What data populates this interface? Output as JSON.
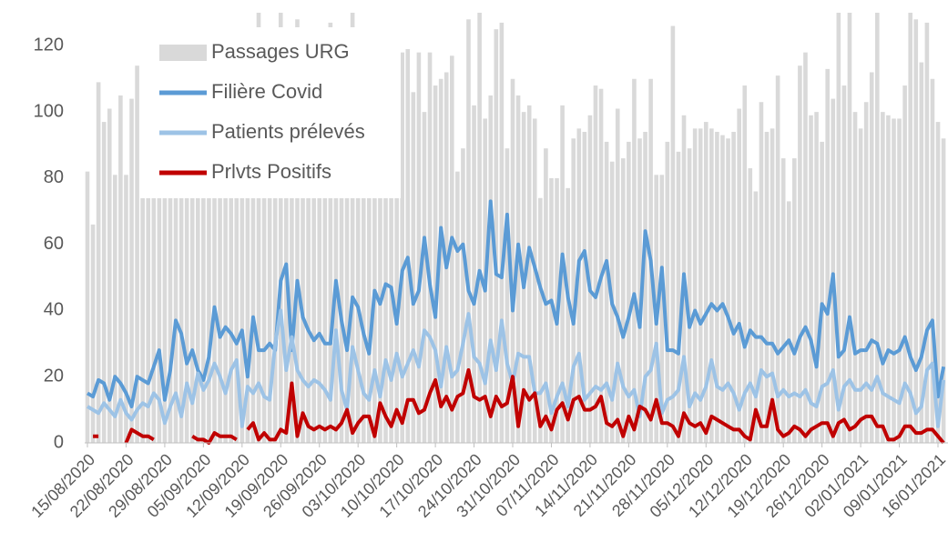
{
  "chart_data": {
    "type": "combo",
    "categories": [
      "15/08/2020",
      null,
      null,
      null,
      null,
      null,
      null,
      "22/08/2020",
      null,
      null,
      null,
      null,
      null,
      null,
      "29/08/2020",
      null,
      null,
      null,
      null,
      null,
      null,
      "05/09/2020",
      null,
      null,
      null,
      null,
      null,
      null,
      "12/09/2020",
      null,
      null,
      null,
      null,
      null,
      null,
      "19/09/2020",
      null,
      null,
      null,
      null,
      null,
      null,
      "26/09/2020",
      null,
      null,
      null,
      null,
      null,
      null,
      "03/10/2020",
      null,
      null,
      null,
      null,
      null,
      null,
      "10/10/2020",
      null,
      null,
      null,
      null,
      null,
      null,
      "17/10/2020",
      null,
      null,
      null,
      null,
      null,
      null,
      "24/10/2020",
      null,
      null,
      null,
      null,
      null,
      null,
      "31/10/2020",
      null,
      null,
      null,
      null,
      null,
      null,
      "07/11/2020",
      null,
      null,
      null,
      null,
      null,
      null,
      "14/11/2020",
      null,
      null,
      null,
      null,
      null,
      null,
      "21/11/2020",
      null,
      null,
      null,
      null,
      null,
      null,
      "28/11/2020",
      null,
      null,
      null,
      null,
      null,
      null,
      "05/12/2020",
      null,
      null,
      null,
      null,
      null,
      null,
      "12/12/2020",
      null,
      null,
      null,
      null,
      null,
      null,
      "19/12/2020",
      null,
      null,
      null,
      null,
      null,
      null,
      "26/12/2020",
      null,
      null,
      null,
      null,
      null,
      null,
      "02/01/2021",
      null,
      null,
      null,
      null,
      null,
      null,
      "09/01/2021",
      null,
      null,
      null,
      null,
      null,
      null,
      "16/01/2021",
      null
    ],
    "series": [
      {
        "name": "Passages URG",
        "type": "bar",
        "color": "#d9d9d9",
        "values": [
          82,
          66,
          109,
          97,
          101,
          81,
          105,
          81,
          104,
          114,
          110,
          108,
          112,
          104,
          100,
          105,
          110,
          108,
          106,
          112,
          110,
          108,
          112,
          115,
          110,
          112,
          108,
          110,
          112,
          115,
          118,
          130,
          125,
          118,
          115,
          130,
          120,
          125,
          128,
          122,
          118,
          120,
          118,
          115,
          127,
          120,
          118,
          115,
          130,
          110,
          112,
          116,
          120,
          118,
          114,
          107,
          107,
          118,
          119,
          106,
          118,
          100,
          118,
          108,
          110,
          112,
          117,
          82,
          89,
          128,
          102,
          130,
          98,
          105,
          125,
          127,
          89,
          110,
          105,
          100,
          102,
          98,
          74,
          89,
          80,
          80,
          102,
          77,
          92,
          95,
          94,
          99,
          108,
          107,
          91,
          85,
          101,
          86,
          91,
          110,
          92,
          94,
          110,
          81,
          81,
          91,
          126,
          88,
          99,
          89,
          95,
          95,
          97,
          95,
          94,
          93,
          92,
          94,
          101,
          108,
          83,
          76,
          103,
          94,
          95,
          111,
          86,
          73,
          86,
          114,
          118,
          99,
          100,
          91,
          113,
          104,
          130,
          108,
          130,
          100,
          95,
          103,
          112,
          130,
          100,
          99,
          98,
          98,
          108,
          130,
          128,
          115,
          127,
          110,
          97,
          92
        ]
      },
      {
        "name": "Filière Covid",
        "type": "line",
        "color": "#5b9bd5",
        "values": [
          15,
          14,
          19,
          18,
          13,
          20,
          18,
          15,
          11,
          20,
          19,
          18,
          23,
          28,
          13,
          22,
          37,
          33,
          24,
          28,
          22,
          19,
          26,
          41,
          32,
          35,
          33,
          30,
          34,
          20,
          38,
          28,
          28,
          30,
          28,
          49,
          54,
          28,
          49,
          38,
          34,
          31,
          33,
          30,
          30,
          49,
          37,
          28,
          44,
          41,
          33,
          27,
          46,
          42,
          48,
          47,
          36,
          52,
          56,
          42,
          46,
          62,
          48,
          38,
          65,
          53,
          62,
          58,
          60,
          46,
          42,
          52,
          46,
          73,
          51,
          50,
          69,
          40,
          60,
          47,
          59,
          53,
          47,
          42,
          43,
          36,
          57,
          44,
          36,
          55,
          58,
          46,
          44,
          50,
          55,
          42,
          38,
          32,
          38,
          45,
          35,
          64,
          55,
          36,
          53,
          28,
          28,
          27,
          51,
          35,
          40,
          36,
          39,
          42,
          40,
          42,
          38,
          33,
          36,
          29,
          34,
          32,
          32,
          30,
          30,
          27,
          29,
          31,
          27,
          32,
          35,
          31,
          23,
          42,
          39,
          51,
          26,
          28,
          38,
          27,
          28,
          28,
          31,
          30,
          24,
          28,
          27,
          28,
          32,
          26,
          22,
          26,
          34,
          37,
          14,
          23
        ]
      },
      {
        "name": "Patients prélevés",
        "type": "line",
        "color": "#9dc3e6",
        "values": [
          11,
          10,
          9,
          12,
          10,
          8,
          13,
          9,
          7,
          10,
          12,
          11,
          15,
          13,
          6,
          11,
          15,
          8,
          18,
          12,
          21,
          16,
          19,
          24,
          20,
          15,
          22,
          25,
          5,
          17,
          15,
          18,
          14,
          13,
          30,
          40,
          22,
          32,
          22,
          19,
          17,
          19,
          18,
          16,
          13,
          34,
          16,
          10,
          29,
          22,
          15,
          13,
          22,
          14,
          25,
          19,
          27,
          20,
          24,
          28,
          23,
          34,
          32,
          28,
          17,
          29,
          20,
          22,
          30,
          39,
          26,
          24,
          18,
          31,
          22,
          37,
          24,
          18,
          27,
          26,
          26,
          15,
          15,
          18,
          9,
          14,
          18,
          11,
          23,
          27,
          13,
          15,
          17,
          16,
          18,
          13,
          24,
          17,
          14,
          16,
          8,
          20,
          22,
          30,
          9,
          13,
          14,
          16,
          26,
          11,
          15,
          13,
          17,
          25,
          17,
          16,
          18,
          15,
          10,
          15,
          18,
          14,
          22,
          20,
          21,
          14,
          16,
          14,
          15,
          14,
          16,
          12,
          11,
          17,
          18,
          22,
          10,
          17,
          19,
          16,
          16,
          18,
          16,
          20,
          15,
          14,
          13,
          12,
          18,
          15,
          9,
          11,
          22,
          24,
          5,
          19
        ]
      },
      {
        "name": "Prlvts Positifs",
        "type": "line",
        "color": "#c00000",
        "values": [
          null,
          2,
          2,
          null,
          null,
          null,
          null,
          0,
          4,
          3,
          2,
          2,
          1,
          null,
          null,
          null,
          null,
          null,
          null,
          2,
          1,
          1,
          0,
          3,
          2,
          2,
          2,
          1,
          null,
          4,
          6,
          1,
          3,
          1,
          1,
          4,
          3,
          18,
          2,
          9,
          5,
          4,
          5,
          4,
          5,
          4,
          6,
          10,
          3,
          6,
          8,
          8,
          2,
          12,
          8,
          5,
          10,
          6,
          13,
          13,
          9,
          10,
          15,
          19,
          11,
          14,
          10,
          14,
          15,
          22,
          14,
          13,
          14,
          8,
          14,
          11,
          12,
          20,
          5,
          16,
          13,
          15,
          5,
          8,
          4,
          10,
          12,
          7,
          13,
          14,
          10,
          10,
          11,
          14,
          6,
          5,
          7,
          2,
          8,
          4,
          11,
          10,
          7,
          13,
          6,
          6,
          5,
          2,
          9,
          6,
          5,
          6,
          3,
          8,
          7,
          6,
          5,
          4,
          4,
          2,
          1,
          10,
          5,
          5,
          13,
          4,
          2,
          3,
          5,
          4,
          2,
          4,
          5,
          6,
          6,
          2,
          6,
          7,
          4,
          5,
          7,
          8,
          8,
          5,
          5,
          1,
          1,
          2,
          5,
          5,
          3,
          3,
          4,
          4,
          2,
          0
        ]
      }
    ],
    "ylim": [
      0,
      130
    ],
    "yticks": [
      0,
      20,
      40,
      60,
      80,
      100,
      120
    ],
    "legend": "upper left"
  }
}
